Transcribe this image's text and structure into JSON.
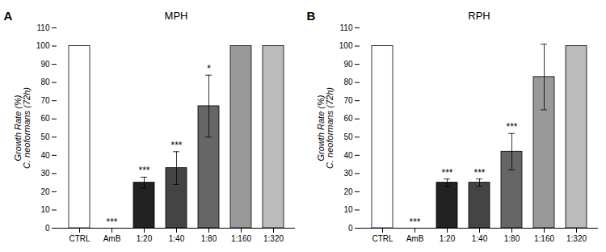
{
  "chart_data": [
    {
      "type": "bar",
      "title": "MPH",
      "panel_label": "A",
      "categories": [
        "CTRL",
        "AmB",
        "1:20",
        "1:40",
        "1:80",
        "1:160",
        "1:320"
      ],
      "values": [
        100,
        0,
        25,
        33,
        67,
        100,
        100
      ],
      "errors": [
        0,
        0,
        3,
        9,
        17,
        0,
        0
      ],
      "colors": [
        "#ffffff",
        "#111111",
        "#222222",
        "#444444",
        "#666666",
        "#999999",
        "#bbbbbb"
      ],
      "significance": [
        null,
        "***",
        "***",
        "***",
        "*",
        null,
        null
      ],
      "ylabel": "Growth Rate (%)\nC. neoformans (72h)",
      "ylim": [
        0,
        110
      ],
      "yticks": [
        0,
        10,
        20,
        30,
        40,
        50,
        60,
        70,
        80,
        90,
        100,
        110
      ],
      "grid": false
    },
    {
      "type": "bar",
      "title": "RPH",
      "panel_label": "B",
      "categories": [
        "CTRL",
        "AmB",
        "1:20",
        "1:40",
        "1:80",
        "1:160",
        "1:320"
      ],
      "values": [
        100,
        0,
        25,
        25,
        42,
        83,
        100
      ],
      "errors": [
        0,
        0,
        2,
        2,
        10,
        18,
        0
      ],
      "colors": [
        "#ffffff",
        "#111111",
        "#222222",
        "#444444",
        "#666666",
        "#999999",
        "#bbbbbb"
      ],
      "significance": [
        null,
        "***",
        "***",
        "***",
        "***",
        null,
        null
      ],
      "ylabel": "Growth Rate (%)\nC. neoformans (72h)",
      "ylim": [
        0,
        110
      ],
      "yticks": [
        0,
        10,
        20,
        30,
        40,
        50,
        60,
        70,
        80,
        90,
        100,
        110
      ],
      "grid": false
    }
  ]
}
